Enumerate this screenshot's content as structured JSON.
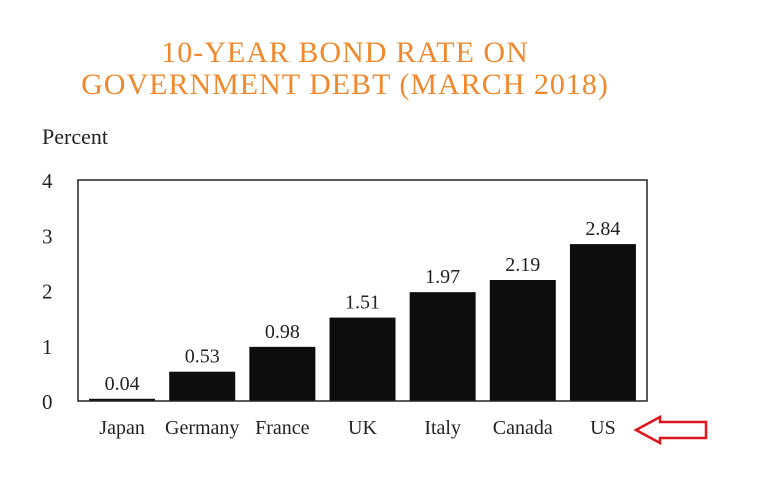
{
  "chart_data": {
    "type": "bar",
    "title": "10-YEAR BOND RATE ON GOVERNMENT DEBT (MARCH 2018)",
    "title_lines": [
      "10-YEAR BOND RATE ON",
      "GOVERNMENT DEBT (MARCH 2018)"
    ],
    "ylabel": "Percent",
    "xlabel": "",
    "categories": [
      "Japan",
      "Germany",
      "France",
      "UK",
      "Italy",
      "Canada",
      "US"
    ],
    "values": [
      0.04,
      0.53,
      0.98,
      1.51,
      1.97,
      2.19,
      2.84
    ],
    "value_labels": [
      "0.04",
      "0.53",
      "0.98",
      "1.51",
      "1.97",
      "2.19",
      "2.84"
    ],
    "ylim": [
      0,
      4
    ],
    "yticks": [
      "0",
      "1",
      "2",
      "3",
      "4"
    ],
    "grid": false,
    "bar_color": "#0d0d0d",
    "title_color": "#f0892e",
    "highlight_arrow_color": "#e0141c",
    "highlight_category": "US"
  }
}
